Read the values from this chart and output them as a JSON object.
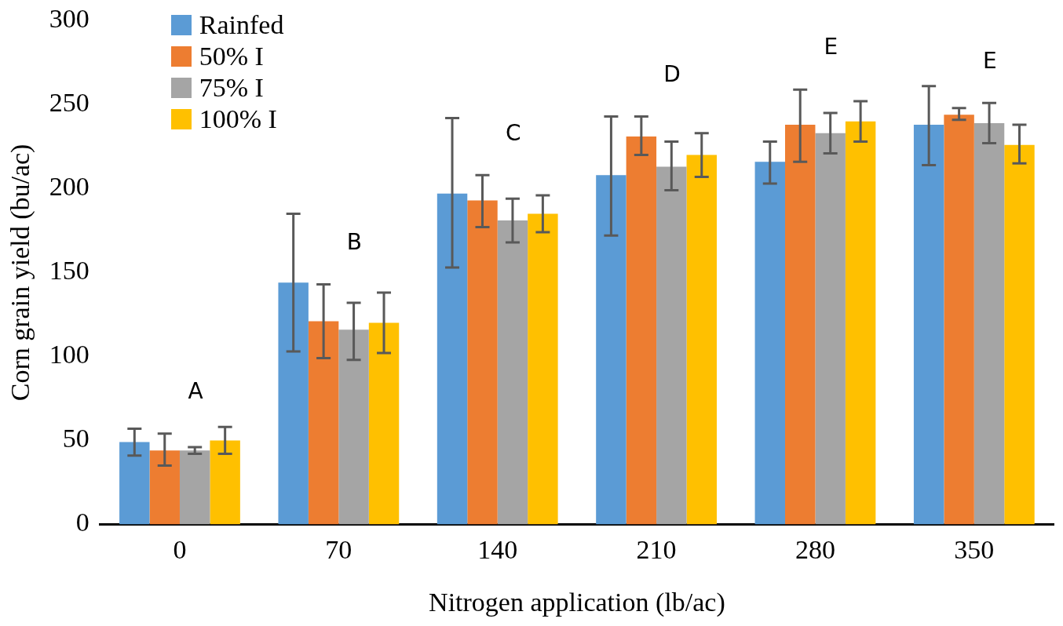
{
  "chart_data": {
    "type": "bar",
    "xlabel": "Nitrogen application (lb/ac)",
    "ylabel": "Corn grain yield (bu/ac)",
    "categories": [
      "0",
      "70",
      "140",
      "210",
      "280",
      "350"
    ],
    "series": [
      {
        "name": "Rainfed",
        "color": "#5b9bd5",
        "values": [
          49,
          144,
          197,
          208,
          216,
          238
        ],
        "errors": [
          [
            41,
            57
          ],
          [
            103,
            185
          ],
          [
            153,
            242
          ],
          [
            172,
            243
          ],
          [
            203,
            228
          ],
          [
            214,
            261
          ]
        ]
      },
      {
        "name": "50% I",
        "color": "#ed7d31",
        "values": [
          44,
          121,
          193,
          231,
          238,
          244
        ],
        "errors": [
          [
            35,
            54
          ],
          [
            99,
            143
          ],
          [
            177,
            208
          ],
          [
            220,
            243
          ],
          [
            216,
            259
          ],
          [
            241,
            248
          ]
        ]
      },
      {
        "name": "75% I",
        "color": "#a5a5a5",
        "values": [
          44,
          116,
          181,
          213,
          233,
          239
        ],
        "errors": [
          [
            42,
            46
          ],
          [
            98,
            132
          ],
          [
            168,
            194
          ],
          [
            199,
            228
          ],
          [
            221,
            245
          ],
          [
            227,
            251
          ]
        ]
      },
      {
        "name": "100% I",
        "color": "#ffc000",
        "values": [
          50,
          120,
          185,
          220,
          240,
          226
        ],
        "errors": [
          [
            42,
            58
          ],
          [
            102,
            138
          ],
          [
            174,
            196
          ],
          [
            207,
            233
          ],
          [
            228,
            252
          ],
          [
            215,
            238
          ]
        ]
      }
    ],
    "ylim": [
      0,
      300
    ],
    "yticks": [
      0,
      50,
      100,
      150,
      200,
      250,
      300
    ],
    "grid": false,
    "legend": "top left",
    "annotations": [
      "A",
      "B",
      "C",
      "D",
      "E",
      "E"
    ]
  }
}
